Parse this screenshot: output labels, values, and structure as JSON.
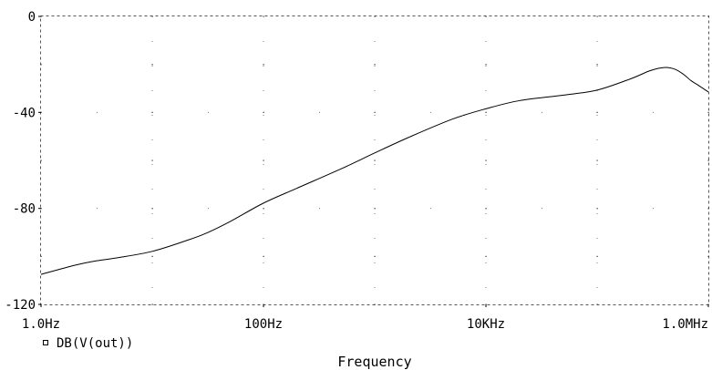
{
  "chart_data": {
    "type": "line",
    "title": "",
    "xlabel": "Frequency",
    "ylabel": "",
    "x_scale": "log",
    "xlim": [
      1,
      1000000
    ],
    "ylim": [
      -120,
      0
    ],
    "x_ticks": [
      {
        "value": 1,
        "label": "1.0Hz"
      },
      {
        "value": 100,
        "label": "100Hz"
      },
      {
        "value": 10000,
        "label": "10KHz"
      },
      {
        "value": 1000000,
        "label": "1.0MHz"
      }
    ],
    "y_ticks": [
      {
        "value": 0,
        "label": "0"
      },
      {
        "value": -40,
        "label": "-40"
      },
      {
        "value": -80,
        "label": "-80"
      },
      {
        "value": -120,
        "label": "-120"
      }
    ],
    "grid": "dotted",
    "legend_position": "bottom-left",
    "series": [
      {
        "name": "DB(V(out))",
        "color": "#000000",
        "x": [
          1,
          2,
          3,
          5,
          10,
          20,
          30,
          50,
          100,
          200,
          500,
          1000,
          2000,
          5000,
          10000,
          20000,
          50000,
          100000,
          200000,
          300000,
          400000,
          500000,
          600000,
          700000,
          800000,
          1000000
        ],
        "y": [
          -107.5,
          -103.7,
          -102.0,
          -100.5,
          -97.9,
          -93.5,
          -90.5,
          -85.5,
          -77.8,
          -71.6,
          -63.5,
          -56.9,
          -50.5,
          -42.8,
          -38.5,
          -35.1,
          -32.8,
          -30.7,
          -26.0,
          -22.6,
          -21.3,
          -22.0,
          -24.2,
          -26.8,
          -28.5,
          -31.5
        ]
      }
    ]
  }
}
